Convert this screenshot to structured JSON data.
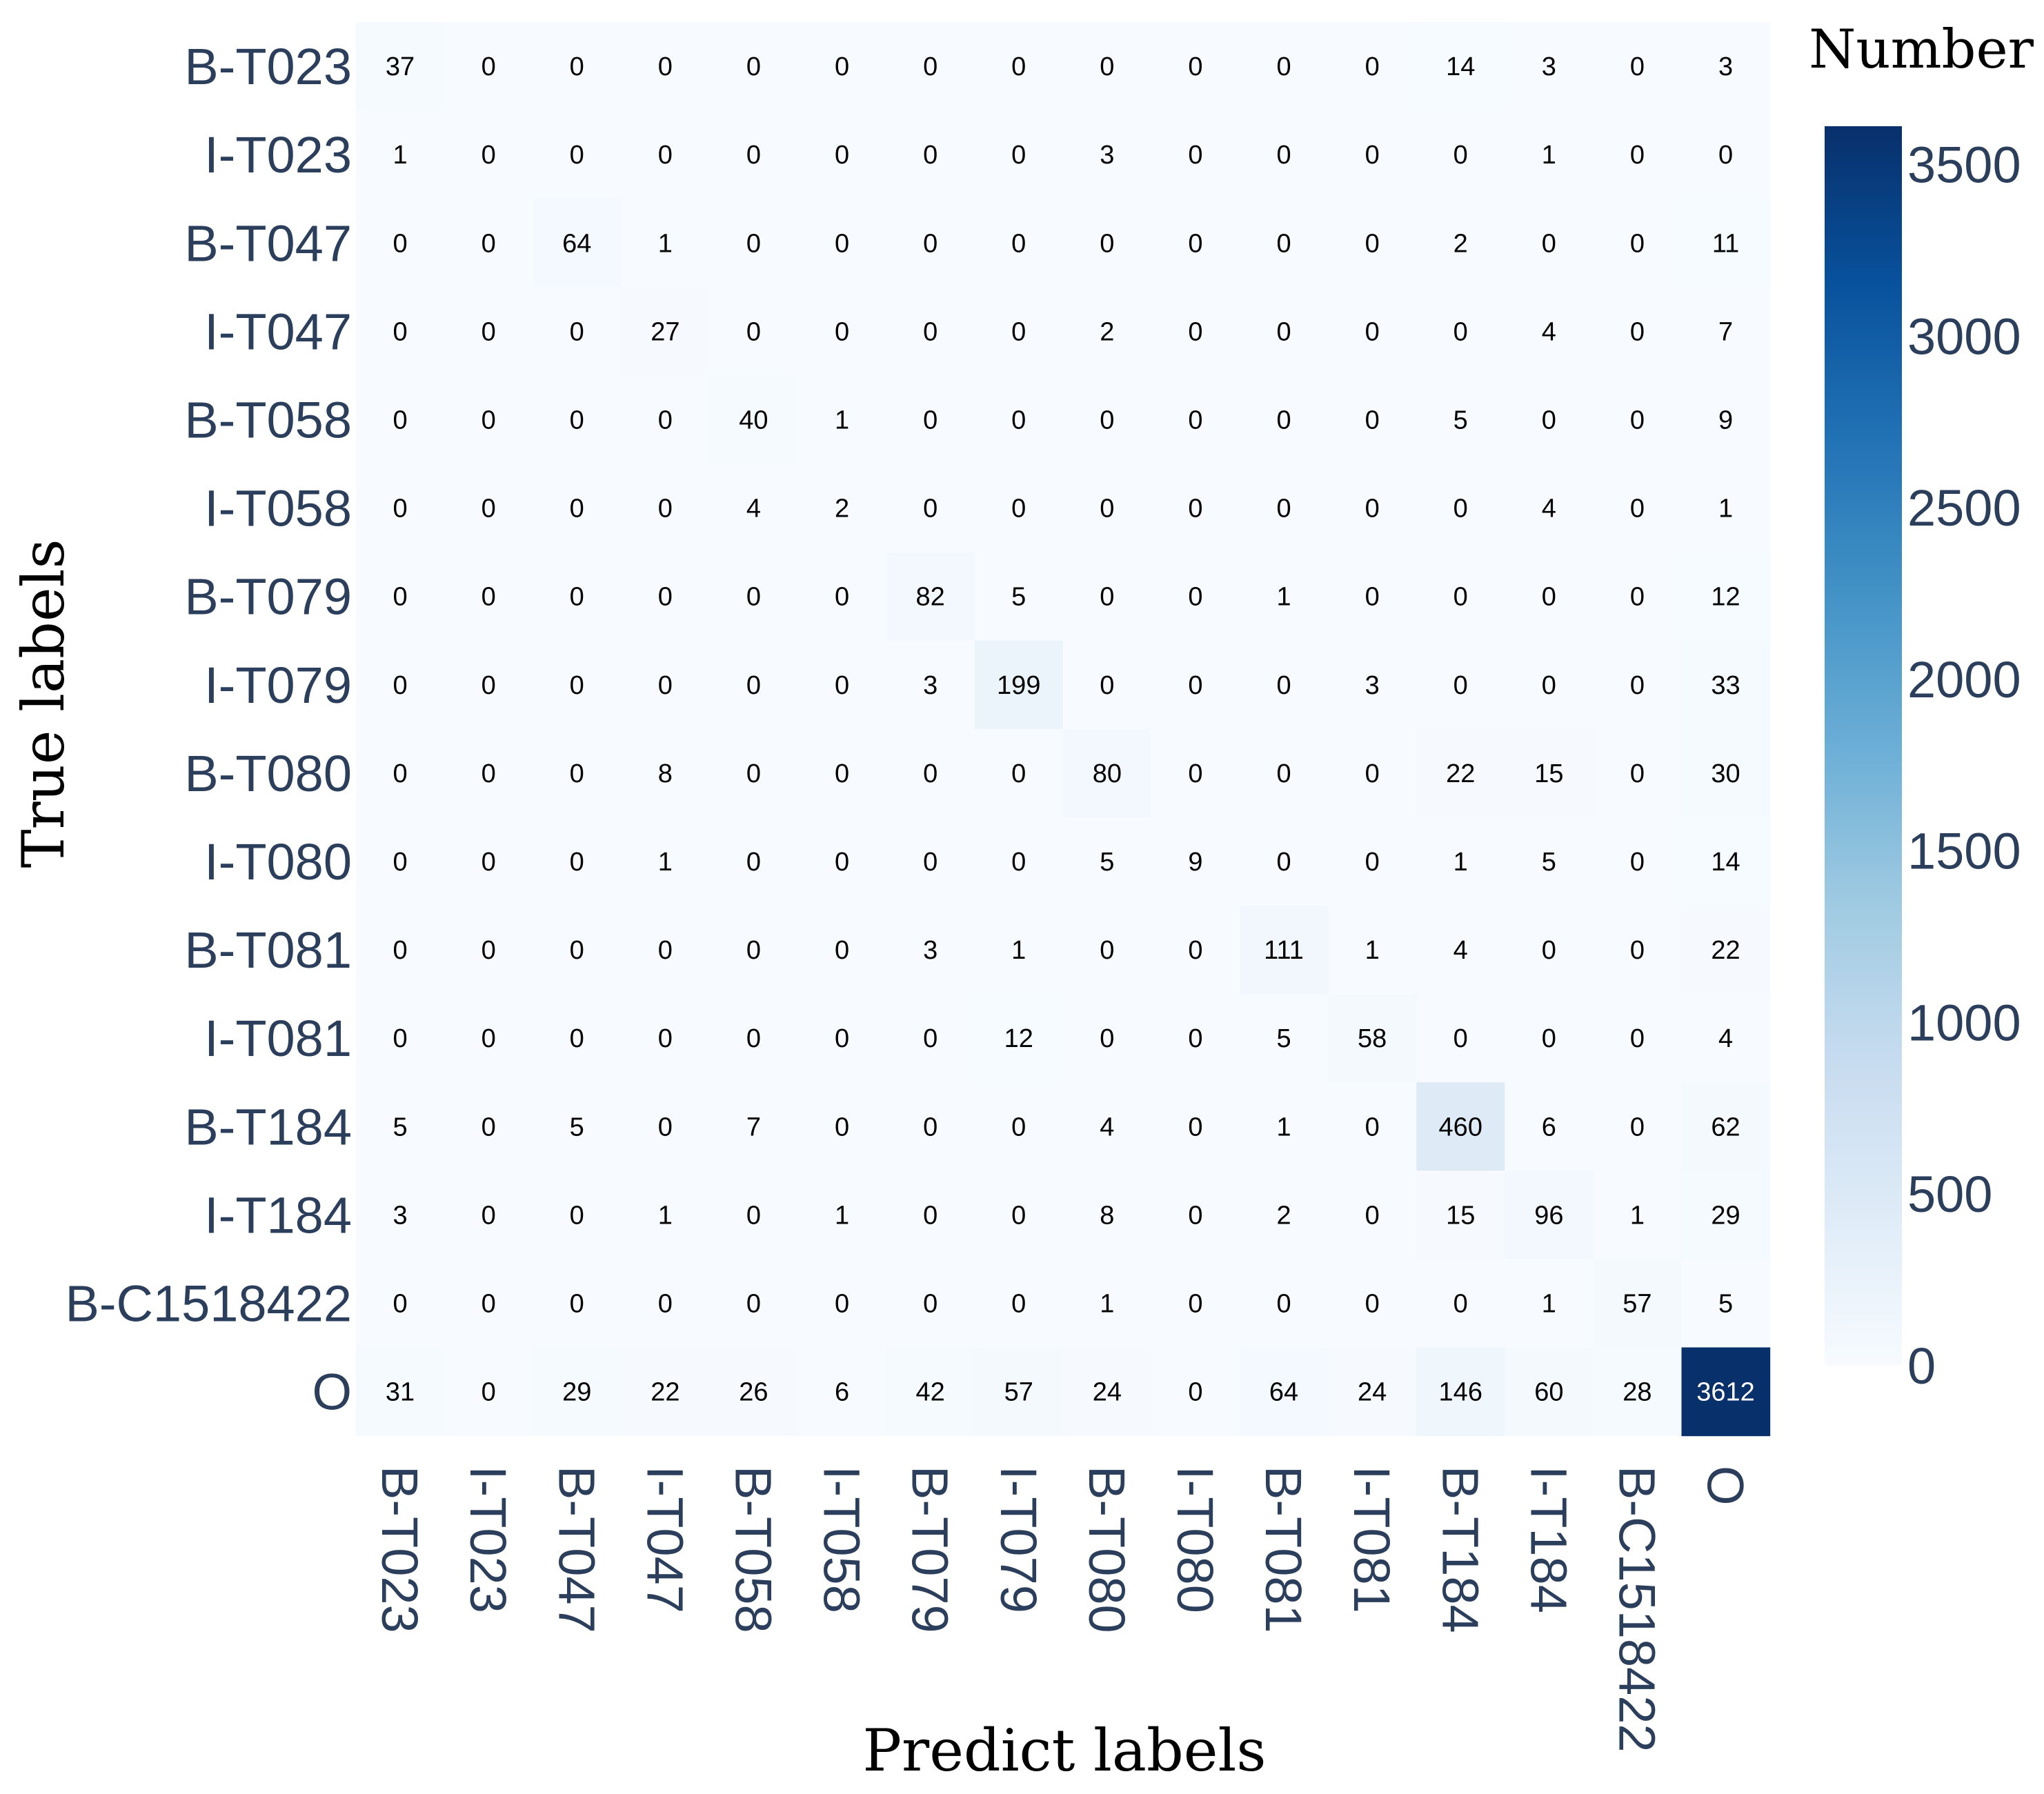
{
  "chart_data": {
    "type": "heatmap",
    "xlabel": "Predict labels",
    "ylabel": "True labels",
    "colorbar_title": "Number",
    "colormap": "Blues",
    "colorbar_range": [
      0,
      3612
    ],
    "colorbar_ticks": [
      0,
      500,
      1000,
      1500,
      2000,
      2500,
      3000,
      3500
    ],
    "row_labels": [
      "B-T023",
      "I-T023",
      "B-T047",
      "I-T047",
      "B-T058",
      "I-T058",
      "B-T079",
      "I-T079",
      "B-T080",
      "I-T080",
      "B-T081",
      "I-T081",
      "B-T184",
      "I-T184",
      "B-C1518422",
      "O"
    ],
    "col_labels": [
      "B-T023",
      "I-T023",
      "B-T047",
      "I-T047",
      "B-T058",
      "I-T058",
      "B-T079",
      "I-T079",
      "B-T080",
      "I-T080",
      "B-T081",
      "I-T081",
      "B-T184",
      "I-T184",
      "B-C1518422",
      "O"
    ],
    "values": [
      [
        37,
        0,
        0,
        0,
        0,
        0,
        0,
        0,
        0,
        0,
        0,
        0,
        14,
        3,
        0,
        3
      ],
      [
        1,
        0,
        0,
        0,
        0,
        0,
        0,
        0,
        3,
        0,
        0,
        0,
        0,
        1,
        0,
        0
      ],
      [
        0,
        0,
        64,
        1,
        0,
        0,
        0,
        0,
        0,
        0,
        0,
        0,
        2,
        0,
        0,
        11
      ],
      [
        0,
        0,
        0,
        27,
        0,
        0,
        0,
        0,
        2,
        0,
        0,
        0,
        0,
        4,
        0,
        7
      ],
      [
        0,
        0,
        0,
        0,
        40,
        1,
        0,
        0,
        0,
        0,
        0,
        0,
        5,
        0,
        0,
        9
      ],
      [
        0,
        0,
        0,
        0,
        4,
        2,
        0,
        0,
        0,
        0,
        0,
        0,
        0,
        4,
        0,
        1
      ],
      [
        0,
        0,
        0,
        0,
        0,
        0,
        82,
        5,
        0,
        0,
        1,
        0,
        0,
        0,
        0,
        12
      ],
      [
        0,
        0,
        0,
        0,
        0,
        0,
        3,
        199,
        0,
        0,
        0,
        3,
        0,
        0,
        0,
        33
      ],
      [
        0,
        0,
        0,
        8,
        0,
        0,
        0,
        0,
        80,
        0,
        0,
        0,
        22,
        15,
        0,
        30
      ],
      [
        0,
        0,
        0,
        1,
        0,
        0,
        0,
        0,
        5,
        9,
        0,
        0,
        1,
        5,
        0,
        14
      ],
      [
        0,
        0,
        0,
        0,
        0,
        0,
        3,
        1,
        0,
        0,
        111,
        1,
        4,
        0,
        0,
        22
      ],
      [
        0,
        0,
        0,
        0,
        0,
        0,
        0,
        12,
        0,
        0,
        5,
        58,
        0,
        0,
        0,
        4
      ],
      [
        5,
        0,
        5,
        0,
        7,
        0,
        0,
        0,
        4,
        0,
        1,
        0,
        460,
        6,
        0,
        62
      ],
      [
        3,
        0,
        0,
        1,
        0,
        1,
        0,
        0,
        8,
        0,
        2,
        0,
        15,
        96,
        1,
        29
      ],
      [
        0,
        0,
        0,
        0,
        0,
        0,
        0,
        0,
        1,
        0,
        0,
        0,
        0,
        1,
        57,
        5
      ],
      [
        31,
        0,
        29,
        22,
        26,
        6,
        42,
        57,
        24,
        0,
        64,
        24,
        146,
        60,
        28,
        3612
      ]
    ]
  }
}
